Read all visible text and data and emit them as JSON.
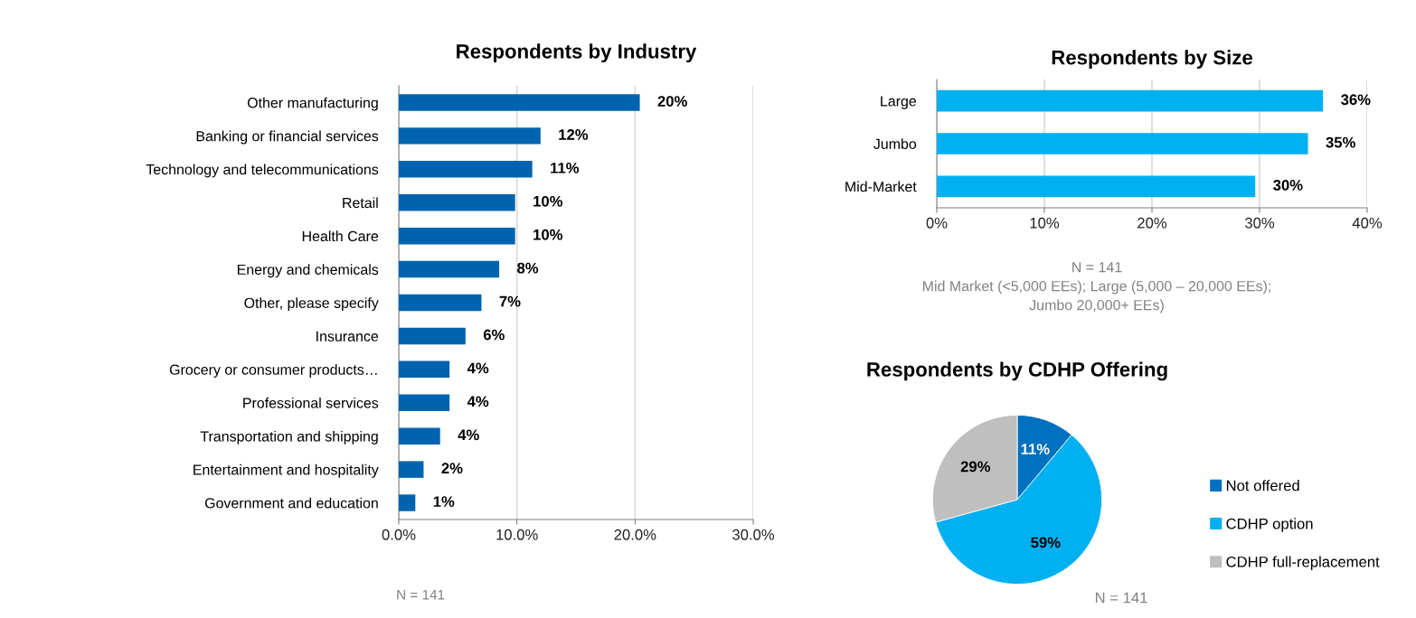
{
  "chart_data": [
    {
      "type": "bar",
      "orientation": "horizontal",
      "title": "Respondents by Industry",
      "categories": [
        "Other manufacturing",
        "Banking or financial services",
        "Technology and telecommunications",
        "Retail",
        "Health Care",
        "Energy and chemicals",
        "Other, please specify",
        "Insurance",
        "Grocery or consumer products…",
        "Professional services",
        "Transportation and shipping",
        "Entertainment and hospitality",
        "Government and education"
      ],
      "values": [
        20.4,
        12.0,
        11.3,
        9.85,
        9.85,
        8.5,
        7.0,
        5.65,
        4.3,
        4.3,
        3.5,
        2.1,
        1.4
      ],
      "value_labels": [
        "20%",
        "12%",
        "11%",
        "10%",
        "10%",
        "8%",
        "7%",
        "6%",
        "4%",
        "4%",
        "4%",
        "2%",
        "1%"
      ],
      "color": "#0063b0",
      "xlim": [
        0,
        30
      ],
      "xticks": [
        {
          "value": 0,
          "label": "0.0%"
        },
        {
          "value": 10,
          "label": "10.0%"
        },
        {
          "value": 20,
          "label": "20.0%"
        },
        {
          "value": 30,
          "label": "30.0%"
        }
      ],
      "grid": "x",
      "annotations": [
        "N = 141"
      ]
    },
    {
      "type": "bar",
      "orientation": "horizontal",
      "title": "Respondents by Size",
      "categories": [
        "Large",
        "Jumbo",
        "Mid-Market"
      ],
      "values": [
        35.9,
        34.5,
        29.6
      ],
      "value_labels": [
        "36%",
        "35%",
        "30%"
      ],
      "color": "#00b0f0",
      "xlim": [
        0,
        40
      ],
      "xticks": [
        {
          "value": 0,
          "label": "0%"
        },
        {
          "value": 10,
          "label": "10%"
        },
        {
          "value": 20,
          "label": "20%"
        },
        {
          "value": 30,
          "label": "30%"
        },
        {
          "value": 40,
          "label": "40%"
        }
      ],
      "grid": "x",
      "annotations": [
        "N = 141",
        "Mid Market (<5,000 EEs); Large (5,000 – 20,000 EEs);",
        "Jumbo 20,000+ EEs)"
      ]
    },
    {
      "type": "pie",
      "title": "Respondents by CDHP Offering",
      "categories": [
        "Not offered",
        "CDHP option",
        "CDHP full-replacement"
      ],
      "values": [
        11,
        59,
        29
      ],
      "colors": [
        "#0070c0",
        "#00b0f0",
        "#bfbfbf"
      ],
      "value_labels": [
        "11%",
        "59%",
        "29%"
      ],
      "legend": "right",
      "annotations": [
        "N = 141"
      ]
    }
  ]
}
